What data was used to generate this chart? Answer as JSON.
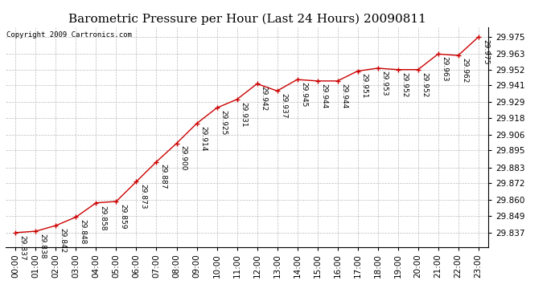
{
  "title": "Barometric Pressure per Hour (Last 24 Hours) 20090811",
  "copyright": "Copyright 2009 Cartronics.com",
  "hours": [
    "00:00",
    "01:00",
    "02:00",
    "03:00",
    "04:00",
    "05:00",
    "06:00",
    "07:00",
    "08:00",
    "09:00",
    "10:00",
    "11:00",
    "12:00",
    "13:00",
    "14:00",
    "15:00",
    "16:00",
    "17:00",
    "18:00",
    "19:00",
    "20:00",
    "21:00",
    "22:00",
    "23:00"
  ],
  "values": [
    29.837,
    29.838,
    29.842,
    29.848,
    29.858,
    29.859,
    29.873,
    29.887,
    29.9,
    29.914,
    29.925,
    29.931,
    29.942,
    29.937,
    29.945,
    29.944,
    29.944,
    29.951,
    29.953,
    29.952,
    29.952,
    29.963,
    29.962,
    29.975
  ],
  "yticks": [
    29.837,
    29.849,
    29.86,
    29.872,
    29.883,
    29.895,
    29.906,
    29.918,
    29.929,
    29.941,
    29.952,
    29.963,
    29.975
  ],
  "ylim": [
    29.827,
    29.982
  ],
  "line_color": "#cc0000",
  "marker_color": "#cc0000",
  "bg_color": "#ffffff",
  "plot_bg_color": "#ffffff",
  "grid_color": "#bbbbbb",
  "title_fontsize": 11,
  "copyright_fontsize": 6.5,
  "annotation_fontsize": 6.5,
  "tick_fontsize": 7.5,
  "label_rotation": 270
}
